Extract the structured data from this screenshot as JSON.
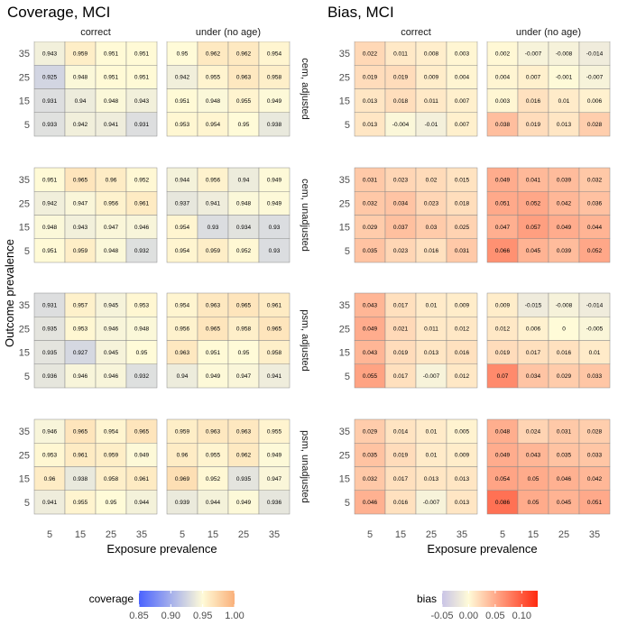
{
  "chart_data": [
    {
      "type": "heatmap",
      "title": "Coverage, MCI",
      "xlabel": "Exposure prevalence",
      "ylabel": "Outcome prevalence",
      "x_ticks": [
        "5",
        "15",
        "25",
        "35"
      ],
      "y_ticks": [
        "35",
        "25",
        "15",
        "5"
      ],
      "columns": [
        "correct",
        "under (no age)"
      ],
      "rows": [
        "cem, adjusted",
        "cem, unadjusted",
        "psm, adjusted",
        "psm, unadjusted"
      ],
      "panels": [
        [
          [
            [
              0.943,
              0.959,
              0.951,
              0.951
            ],
            [
              0.925,
              0.948,
              0.951,
              0.951
            ],
            [
              0.931,
              0.94,
              0.948,
              0.943
            ],
            [
              0.933,
              0.942,
              0.941,
              0.931
            ]
          ],
          [
            [
              0.95,
              0.962,
              0.962,
              0.954
            ],
            [
              0.942,
              0.955,
              0.963,
              0.958
            ],
            [
              0.951,
              0.948,
              0.955,
              0.949
            ],
            [
              0.953,
              0.954,
              0.95,
              0.938
            ]
          ]
        ],
        [
          [
            [
              0.951,
              0.965,
              0.96,
              0.952
            ],
            [
              0.942,
              0.947,
              0.956,
              0.961
            ],
            [
              0.948,
              0.943,
              0.947,
              0.946
            ],
            [
              0.951,
              0.959,
              0.948,
              0.932
            ]
          ],
          [
            [
              0.944,
              0.956,
              0.94,
              0.949
            ],
            [
              0.937,
              0.941,
              0.948,
              0.949
            ],
            [
              0.954,
              0.93,
              0.934,
              0.93
            ],
            [
              0.954,
              0.959,
              0.952,
              0.93
            ]
          ]
        ],
        [
          [
            [
              0.931,
              0.957,
              0.945,
              0.953
            ],
            [
              0.935,
              0.953,
              0.946,
              0.948
            ],
            [
              0.935,
              0.927,
              0.945,
              0.95
            ],
            [
              0.936,
              0.946,
              0.946,
              0.932
            ]
          ],
          [
            [
              0.954,
              0.963,
              0.965,
              0.961
            ],
            [
              0.956,
              0.965,
              0.958,
              0.965
            ],
            [
              0.963,
              0.951,
              0.95,
              0.958
            ],
            [
              0.94,
              0.949,
              0.947,
              0.941
            ]
          ]
        ],
        [
          [
            [
              0.946,
              0.965,
              0.954,
              0.965
            ],
            [
              0.953,
              0.961,
              0.959,
              0.949
            ],
            [
              0.96,
              0.938,
              0.958,
              0.961
            ],
            [
              0.941,
              0.955,
              0.95,
              0.944
            ]
          ],
          [
            [
              0.959,
              0.963,
              0.963,
              0.955
            ],
            [
              0.96,
              0.955,
              0.962,
              0.949
            ],
            [
              0.969,
              0.952,
              0.935,
              0.947
            ],
            [
              0.939,
              0.944,
              0.949,
              0.936
            ]
          ]
        ]
      ],
      "legend": {
        "title": "coverage",
        "min": 0.85,
        "mid": 0.95,
        "max": 1.0,
        "ticks": [
          "0.85",
          "0.90",
          "0.95",
          "1.00"
        ],
        "tick_values": [
          0.85,
          0.9,
          0.95,
          1.0
        ],
        "colors": {
          "low": "#4a63ff",
          "mid": "#fffbd8",
          "high": "#fab07a"
        }
      }
    },
    {
      "type": "heatmap",
      "title": "Bias, MCI",
      "xlabel": "Exposure prevalence",
      "ylabel": "",
      "x_ticks": [
        "5",
        "15",
        "25",
        "35"
      ],
      "y_ticks": [
        "35",
        "25",
        "15",
        "5"
      ],
      "columns": [
        "correct",
        "under (no age)"
      ],
      "rows": [
        "cem, adjusted",
        "cem, unadjusted",
        "psm, adjusted",
        "psm, unadjusted"
      ],
      "panels": [
        [
          [
            [
              0.022,
              0.011,
              0.008,
              0.003
            ],
            [
              0.019,
              0.019,
              0.009,
              0.004
            ],
            [
              0.013,
              0.018,
              0.011,
              0.007
            ],
            [
              0.013,
              -0.004,
              -0.01,
              0.007
            ]
          ],
          [
            [
              0.002,
              -0.007,
              -0.008,
              -0.014
            ],
            [
              0.004,
              0.007,
              -0.001,
              -0.007
            ],
            [
              0.003,
              0.016,
              0.01,
              0.006
            ],
            [
              0.038,
              0.019,
              0.013,
              0.028
            ]
          ]
        ],
        [
          [
            [
              0.031,
              0.023,
              0.02,
              0.015
            ],
            [
              0.032,
              0.034,
              0.023,
              0.018
            ],
            [
              0.029,
              0.037,
              0.03,
              0.025
            ],
            [
              0.035,
              0.023,
              0.016,
              0.031
            ]
          ],
          [
            [
              0.049,
              0.041,
              0.039,
              0.032
            ],
            [
              0.051,
              0.052,
              0.042,
              0.036
            ],
            [
              0.047,
              0.057,
              0.049,
              0.044
            ],
            [
              0.066,
              0.045,
              0.039,
              0.052
            ]
          ]
        ],
        [
          [
            [
              0.043,
              0.017,
              0.01,
              0.009
            ],
            [
              0.049,
              0.021,
              0.011,
              0.012
            ],
            [
              0.043,
              0.019,
              0.013,
              0.016
            ],
            [
              0.055,
              0.017,
              -0.007,
              0.012
            ]
          ],
          [
            [
              0.009,
              -0.015,
              -0.008,
              -0.014
            ],
            [
              0.012,
              0.006,
              0,
              -0.005
            ],
            [
              0.019,
              0.017,
              0.016,
              0.01
            ],
            [
              0.07,
              0.034,
              0.029,
              0.033
            ]
          ]
        ],
        [
          [
            [
              0.029,
              0.014,
              0.01,
              0.005
            ],
            [
              0.035,
              0.019,
              0.01,
              0.009
            ],
            [
              0.032,
              0.017,
              0.013,
              0.013
            ],
            [
              0.046,
              0.016,
              -0.007,
              0.013
            ]
          ],
          [
            [
              0.048,
              0.024,
              0.031,
              0.028
            ],
            [
              0.049,
              0.043,
              0.035,
              0.033
            ],
            [
              0.054,
              0.05,
              0.046,
              0.042
            ],
            [
              0.086,
              0.05,
              0.045,
              0.051
            ]
          ]
        ]
      ],
      "legend": {
        "title": "bias",
        "min": -0.05,
        "mid": 0.0,
        "max": 0.13,
        "ticks": [
          "-0.05",
          "0.00",
          "0.05",
          "0.10"
        ],
        "tick_values": [
          -0.05,
          0.0,
          0.05,
          0.1
        ],
        "colors": {
          "low": "#c9c4e6",
          "mid": "#fffbd8",
          "high": "#ff2a10"
        }
      }
    }
  ]
}
